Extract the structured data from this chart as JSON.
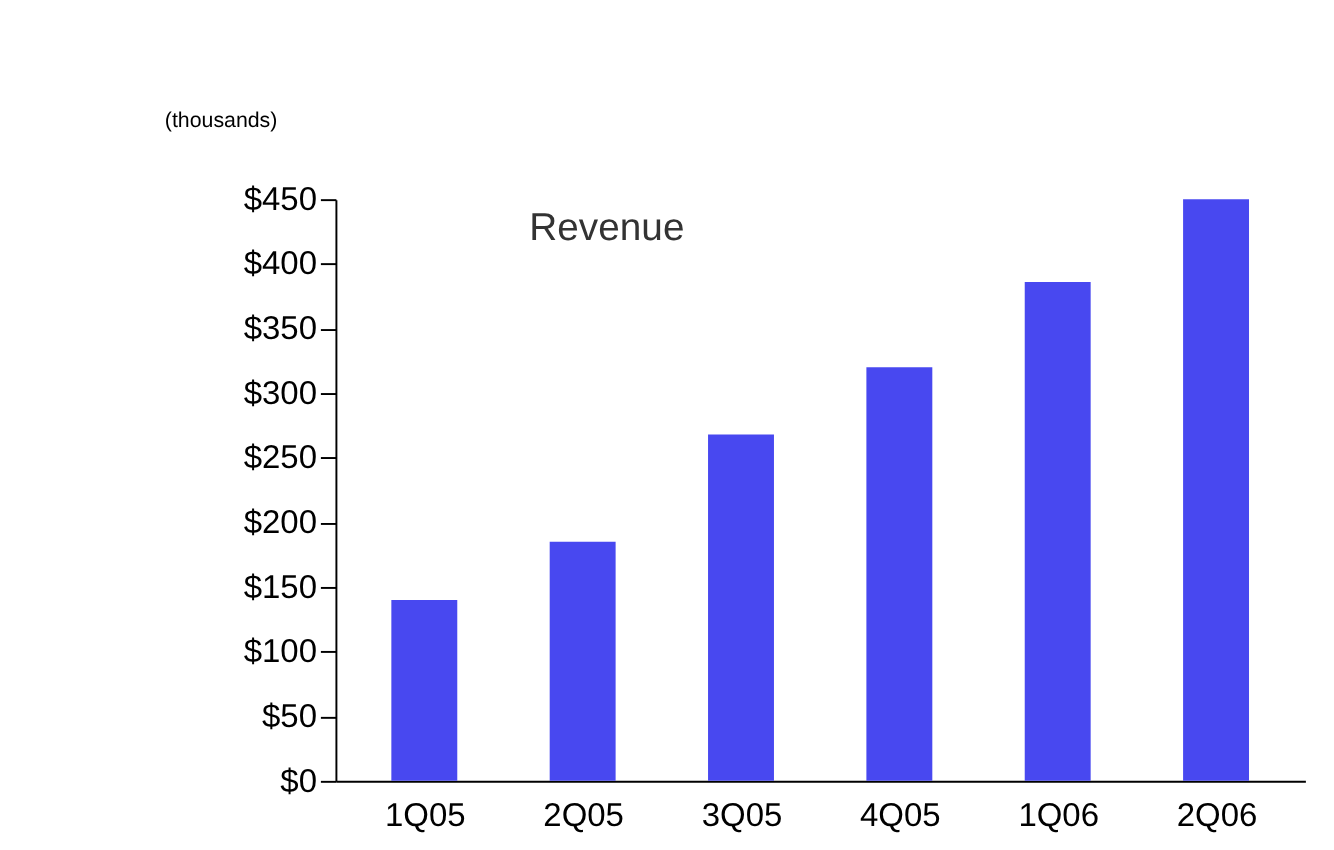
{
  "chart_data": {
    "type": "bar",
    "title": "Revenue",
    "ylabel": "(thousands)",
    "categories": [
      "1Q05",
      "2Q05",
      "3Q05",
      "4Q05",
      "1Q06",
      "2Q06"
    ],
    "values": [
      140,
      185,
      268,
      320,
      386,
      450
    ],
    "color": "#4848f0",
    "ylim": [
      0,
      450
    ],
    "yticks": [
      {
        "value": 0,
        "label": "$0"
      },
      {
        "value": 50,
        "label": "$50"
      },
      {
        "value": 100,
        "label": "$100"
      },
      {
        "value": 150,
        "label": "$150"
      },
      {
        "value": 200,
        "label": "$200"
      },
      {
        "value": 250,
        "label": "$250"
      },
      {
        "value": 300,
        "label": "$300"
      },
      {
        "value": 350,
        "label": "$350"
      },
      {
        "value": 400,
        "label": "$400"
      },
      {
        "value": 450,
        "label": "$450"
      }
    ],
    "grid": false
  }
}
